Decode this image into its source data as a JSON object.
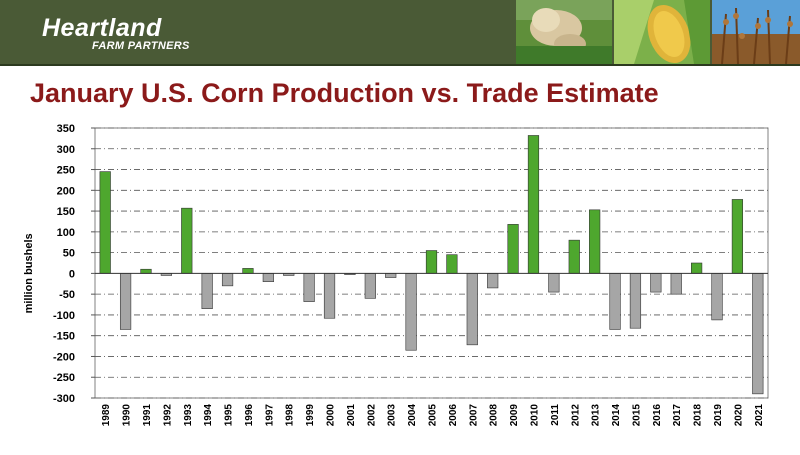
{
  "header": {
    "logo_main": "Heartland",
    "logo_sub": "FARM PARTNERS",
    "colors": {
      "band": "#4a5a36",
      "title": "#8b1a1a"
    },
    "photos": [
      "cow-photo",
      "corn-photo",
      "soybean-photo"
    ]
  },
  "chart_data": {
    "type": "bar",
    "title": "January U.S. Corn Production vs. Trade Estimate",
    "ylabel": "million bushels",
    "xlabel": "",
    "ylim": [
      -300,
      350
    ],
    "yticks": [
      350,
      300,
      250,
      200,
      150,
      100,
      50,
      0,
      -50,
      -100,
      -150,
      -200,
      -250,
      -300
    ],
    "grid": true,
    "colors": {
      "positive": "#4ea72e",
      "negative": "#a6a6a6"
    },
    "categories": [
      "1989",
      "1990",
      "1991",
      "1992",
      "1993",
      "1994",
      "1995",
      "1996",
      "1997",
      "1998",
      "1999",
      "2000",
      "2001",
      "2002",
      "2003",
      "2004",
      "2005",
      "2006",
      "2007",
      "2008",
      "2009",
      "2010",
      "2011",
      "2012",
      "2013",
      "2014",
      "2015",
      "2016",
      "2017",
      "2018",
      "2019",
      "2020",
      "2021"
    ],
    "values": [
      245,
      -135,
      10,
      -5,
      157,
      -85,
      -30,
      12,
      -20,
      -5,
      -68,
      -108,
      -3,
      -60,
      -10,
      -185,
      55,
      45,
      -172,
      -35,
      118,
      332,
      -45,
      80,
      153,
      -135,
      -132,
      -45,
      -50,
      25,
      -112,
      178,
      -290
    ]
  }
}
